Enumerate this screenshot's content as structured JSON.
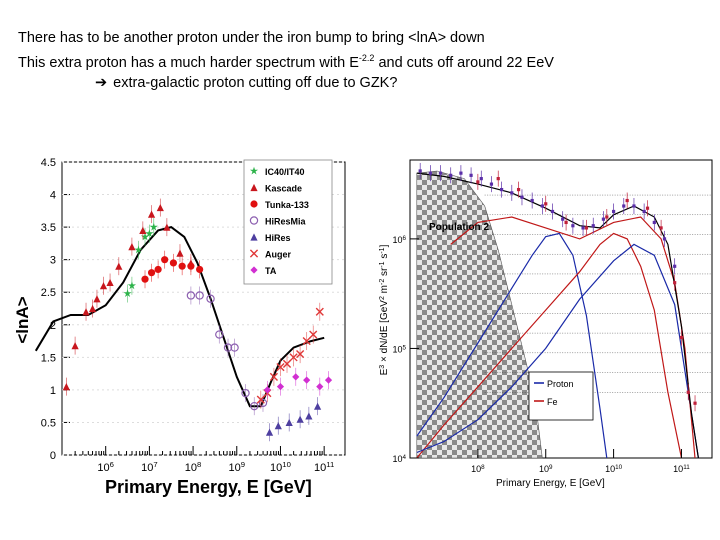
{
  "header": {
    "line1": "There has to be another proton under the iron bump to bring <lnA> down",
    "line2_pre": "This extra proton has a much harder spectrum with E",
    "line2_sup": "-2.2",
    "line2_post": " and cuts off around 22 EeV",
    "line3_arrow": "➔",
    "line3": "extra-galactic proton cutting off due to GZK?"
  },
  "chart_data": [
    {
      "type": "scatter",
      "ylabel": "<lnA>",
      "xlabel": "Primary Energy, E [GeV]",
      "xscale": "log",
      "xlim": [
        100000,
        300000000000
      ],
      "ylim": [
        0,
        4.5
      ],
      "y_ticks": [
        "0",
        "0.5",
        "1",
        "1.5",
        "2",
        "2.5",
        "3",
        "3.5",
        "4",
        "4.5"
      ],
      "x_ticks": [
        {
          "base": "10",
          "exp": "6"
        },
        {
          "base": "10",
          "exp": "7"
        },
        {
          "base": "10",
          "exp": "8"
        },
        {
          "base": "10",
          "exp": "9"
        },
        {
          "base": "10",
          "exp": "10"
        },
        {
          "base": "10",
          "exp": "11"
        }
      ],
      "legend_position": "top-right",
      "series": [
        {
          "name": "IC40/IT40",
          "color": "#2db34a",
          "marker": "star",
          "points": [
            [
              0.5,
              2.48
            ],
            [
              0.6,
              2.6
            ],
            [
              0.75,
              3.15
            ],
            [
              0.9,
              3.35
            ],
            [
              1.0,
              3.4
            ],
            [
              1.1,
              3.5
            ]
          ]
        },
        {
          "name": "Kascade",
          "color": "#c8161d",
          "marker": "triangle",
          "points": [
            [
              -0.9,
              1.05
            ],
            [
              -0.7,
              1.68
            ],
            [
              -0.45,
              2.2
            ],
            [
              -0.3,
              2.25
            ],
            [
              -0.2,
              2.4
            ],
            [
              -0.05,
              2.6
            ],
            [
              0.1,
              2.65
            ],
            [
              0.3,
              2.9
            ],
            [
              0.6,
              3.2
            ],
            [
              0.85,
              3.45
            ],
            [
              1.05,
              3.7
            ],
            [
              1.25,
              3.8
            ],
            [
              1.4,
              3.5
            ],
            [
              1.7,
              3.1
            ],
            [
              1.95,
              2.95
            ]
          ]
        },
        {
          "name": "Tunka-133",
          "color": "#e01010",
          "marker": "circle",
          "points": [
            [
              0.9,
              2.7
            ],
            [
              1.05,
              2.8
            ],
            [
              1.2,
              2.85
            ],
            [
              1.35,
              3.0
            ],
            [
              1.55,
              2.95
            ],
            [
              1.75,
              2.9
            ],
            [
              1.95,
              2.9
            ],
            [
              2.15,
              2.85
            ]
          ]
        },
        {
          "name": "HiResMia",
          "color": "#8c5fb0",
          "marker": "circle-open",
          "points": [
            [
              1.95,
              2.45
            ],
            [
              2.15,
              2.45
            ],
            [
              2.4,
              2.4
            ],
            [
              2.6,
              1.85
            ],
            [
              2.8,
              1.65
            ],
            [
              2.95,
              1.65
            ],
            [
              3.2,
              0.95
            ],
            [
              3.4,
              0.75
            ],
            [
              3.6,
              0.8
            ]
          ]
        },
        {
          "name": "HiRes",
          "color": "#4e3fa0",
          "marker": "triangle",
          "points": [
            [
              3.75,
              0.35
            ],
            [
              3.95,
              0.45
            ],
            [
              4.2,
              0.5
            ],
            [
              4.45,
              0.55
            ],
            [
              4.65,
              0.6
            ],
            [
              4.85,
              0.75
            ]
          ]
        },
        {
          "name": "Auger",
          "color": "#e03838",
          "marker": "x",
          "points": [
            [
              3.55,
              0.85
            ],
            [
              3.7,
              0.95
            ],
            [
              3.85,
              1.2
            ],
            [
              4.0,
              1.35
            ],
            [
              4.15,
              1.4
            ],
            [
              4.3,
              1.5
            ],
            [
              4.45,
              1.55
            ],
            [
              4.6,
              1.75
            ],
            [
              4.75,
              1.85
            ],
            [
              4.9,
              2.2
            ]
          ]
        },
        {
          "name": "TA",
          "color": "#d12fd1",
          "marker": "diamond",
          "points": [
            [
              3.7,
              1.0
            ],
            [
              4.0,
              1.05
            ],
            [
              4.35,
              1.2
            ],
            [
              4.6,
              1.15
            ],
            [
              4.9,
              1.05
            ],
            [
              5.1,
              1.15
            ]
          ]
        }
      ],
      "curve": {
        "color": "#000000",
        "points": [
          [
            -1.6,
            1.6
          ],
          [
            -1.2,
            2.05
          ],
          [
            -0.8,
            2.15
          ],
          [
            -0.4,
            2.15
          ],
          [
            0,
            2.3
          ],
          [
            0.4,
            2.65
          ],
          [
            0.8,
            3.15
          ],
          [
            1.2,
            3.45
          ],
          [
            1.5,
            3.5
          ],
          [
            1.8,
            3.35
          ],
          [
            2.1,
            2.95
          ],
          [
            2.4,
            2.4
          ],
          [
            2.7,
            1.8
          ],
          [
            3.0,
            1.2
          ],
          [
            3.3,
            0.75
          ],
          [
            3.55,
            0.75
          ],
          [
            3.8,
            1.15
          ],
          [
            4.0,
            1.45
          ],
          [
            4.3,
            1.65
          ],
          [
            4.7,
            1.75
          ],
          [
            5.0,
            1.8
          ]
        ]
      }
    },
    {
      "type": "line",
      "ylabel_pre": "E",
      "ylabel_exp1": "3",
      "ylabel_mid": " × dN/dE [GeV",
      "ylabel_exp2": "2",
      "ylabel_mid2": " m",
      "ylabel_exp3": "-2",
      "ylabel_mid3": " sr",
      "ylabel_exp4": "-1",
      "ylabel_mid4": " s",
      "ylabel_exp5": "-1",
      "ylabel_end": "]",
      "xlabel": "Primary Energy, E [GeV]",
      "xscale": "log",
      "yscale": "log",
      "y_ticks": [
        {
          "base": "10",
          "exp": "6"
        },
        {
          "base": "10",
          "exp": "5"
        },
        {
          "base": "10",
          "exp": "4"
        }
      ],
      "x_ticks": [
        {
          "base": "10",
          "exp": "8"
        },
        {
          "base": "10",
          "exp": "9"
        },
        {
          "base": "10",
          "exp": "10"
        },
        {
          "base": "10",
          "exp": "11"
        }
      ],
      "annotation": "Population 2",
      "legend_position": "bottom-center",
      "series": [
        {
          "name": "Proton",
          "color": "#1a2aa8",
          "points": [
            [
              7.1,
              4.2
            ],
            [
              7.5,
              4.55
            ],
            [
              8.0,
              5.05
            ],
            [
              8.5,
              5.55
            ],
            [
              8.8,
              5.85
            ],
            [
              9.0,
              6.02
            ],
            [
              9.2,
              6.05
            ],
            [
              9.4,
              5.85
            ],
            [
              9.6,
              5.3
            ],
            [
              9.8,
              4.45
            ],
            [
              9.9,
              4.0
            ]
          ]
        },
        {
          "name": "Fe",
          "color": "#c01818",
          "points": [
            [
              7.1,
              4.0
            ],
            [
              7.5,
              4.3
            ],
            [
              8.0,
              4.65
            ],
            [
              8.5,
              5.0
            ],
            [
              9.0,
              5.35
            ],
            [
              9.5,
              5.7
            ],
            [
              9.8,
              5.95
            ],
            [
              10.0,
              6.05
            ],
            [
              10.2,
              6.0
            ],
            [
              10.4,
              5.75
            ],
            [
              10.6,
              5.35
            ],
            [
              10.8,
              4.6
            ],
            [
              11.0,
              4.0
            ]
          ]
        }
      ],
      "extra_curves": [
        {
          "label": "",
          "color": "#1a2aa8",
          "points": [
            [
              7.1,
              4.05
            ],
            [
              7.5,
              4.15
            ],
            [
              8.0,
              4.35
            ],
            [
              8.5,
              4.65
            ],
            [
              9.0,
              5.0
            ],
            [
              9.5,
              5.45
            ],
            [
              10.0,
              5.8
            ],
            [
              10.3,
              5.95
            ],
            [
              10.6,
              5.85
            ],
            [
              10.9,
              5.4
            ],
            [
              11.1,
              4.6
            ],
            [
              11.25,
              4.0
            ]
          ]
        },
        {
          "label": "",
          "color": "#c01818",
          "points": [
            [
              7.6,
              5.95
            ],
            [
              8.0,
              6.15
            ],
            [
              8.5,
              6.2
            ],
            [
              9.0,
              6.1
            ],
            [
              9.5,
              6.0
            ],
            [
              10.0,
              6.15
            ],
            [
              10.4,
              6.2
            ],
            [
              10.7,
              6.0
            ],
            [
              10.9,
              5.6
            ],
            [
              11.05,
              5.0
            ],
            [
              11.2,
              4.0
            ]
          ]
        },
        {
          "label": "",
          "color": "#000000",
          "points": [
            [
              7.1,
              6.6
            ],
            [
              7.5,
              6.57
            ],
            [
              8.0,
              6.5
            ],
            [
              8.5,
              6.42
            ],
            [
              9.0,
              6.28
            ],
            [
              9.5,
              6.12
            ],
            [
              9.8,
              6.1
            ],
            [
              10.0,
              6.22
            ],
            [
              10.3,
              6.3
            ],
            [
              10.6,
              6.2
            ],
            [
              10.8,
              5.95
            ],
            [
              11.0,
              5.2
            ],
            [
              11.15,
              4.4
            ],
            [
              11.25,
              4.0
            ]
          ]
        }
      ],
      "data_points": [
        {
          "color": "#5a2ea8",
          "points": [
            [
              7.15,
              6.62
            ],
            [
              7.3,
              6.6
            ],
            [
              7.45,
              6.6
            ],
            [
              7.6,
              6.58
            ],
            [
              7.75,
              6.6
            ],
            [
              7.9,
              6.58
            ],
            [
              8.05,
              6.55
            ],
            [
              8.2,
              6.5
            ],
            [
              8.35,
              6.45
            ],
            [
              8.5,
              6.42
            ],
            [
              8.65,
              6.38
            ],
            [
              8.8,
              6.35
            ],
            [
              8.95,
              6.3
            ],
            [
              9.1,
              6.25
            ],
            [
              9.25,
              6.18
            ],
            [
              9.4,
              6.12
            ],
            [
              9.55,
              6.1
            ],
            [
              9.7,
              6.12
            ],
            [
              9.85,
              6.18
            ],
            [
              10.0,
              6.25
            ],
            [
              10.15,
              6.3
            ],
            [
              10.3,
              6.3
            ],
            [
              10.45,
              6.25
            ],
            [
              10.6,
              6.15
            ],
            [
              10.75,
              6.0
            ],
            [
              10.9,
              5.75
            ]
          ]
        },
        {
          "color": "#c0203a",
          "points": [
            [
              8.0,
              6.52
            ],
            [
              8.3,
              6.55
            ],
            [
              8.6,
              6.45
            ],
            [
              9.0,
              6.32
            ],
            [
              9.3,
              6.15
            ],
            [
              9.6,
              6.1
            ],
            [
              9.9,
              6.2
            ],
            [
              10.2,
              6.35
            ],
            [
              10.5,
              6.28
            ],
            [
              10.7,
              6.1
            ],
            [
              10.9,
              5.6
            ],
            [
              11.0,
              5.1
            ],
            [
              11.1,
              4.6
            ],
            [
              11.2,
              4.5
            ]
          ]
        }
      ]
    }
  ]
}
